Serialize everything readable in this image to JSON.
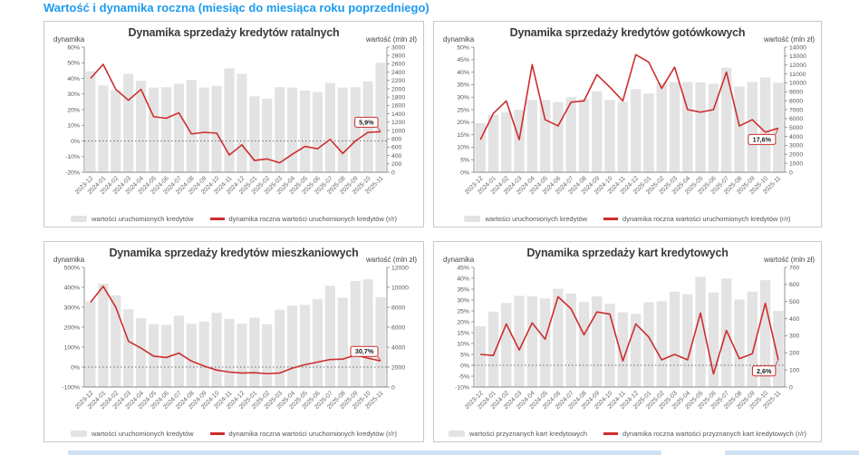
{
  "page": {
    "title": "Wartość i dynamika roczna (miesiąc do miesiąca roku poprzedniego)"
  },
  "colors": {
    "title_blue": "#1d9bf1",
    "bar_gray": "#e3e3e3",
    "line_red": "#cd2d2e",
    "text_dark": "#3b3b3b",
    "tick_gray": "#555555",
    "panel_border": "#c9c9c9"
  },
  "chart_data": [
    {
      "type": "bar",
      "title": "Dynamika sprzedaży kredytów ratalnych",
      "left_axis_title": "dynamika",
      "right_axis_title": "wartość (mln zł)",
      "left_axis": {
        "min": -20,
        "max": 60,
        "step": 10,
        "unit": "%"
      },
      "right_axis": {
        "min": 0,
        "max": 3000,
        "step": 200,
        "unit": "mln zł"
      },
      "categories": [
        "2023-12",
        "2024-01",
        "2024-02",
        "2024-03",
        "2024-04",
        "2024-05",
        "2024-06",
        "2024-07",
        "2024-08",
        "2024-09",
        "2024-10",
        "2024-11",
        "2024-12",
        "2025-01",
        "2025-02",
        "2025-03",
        "2025-04",
        "2025-05",
        "2025-06",
        "2025-07",
        "2025-08",
        "2025-09",
        "2025-10",
        "2025-11"
      ],
      "bars_mln_zl": [
        2420,
        2080,
        1970,
        2360,
        2190,
        2030,
        2040,
        2120,
        2210,
        2030,
        2070,
        2490,
        2360,
        1820,
        1760,
        2040,
        2030,
        1960,
        1920,
        2140,
        2030,
        2040,
        2180,
        2625
      ],
      "line_pct": [
        40,
        49,
        33,
        26,
        33,
        15.5,
        14.5,
        18,
        4.5,
        5.5,
        5,
        -9,
        -2.5,
        -12.5,
        -11.5,
        -14,
        -8.5,
        -3.5,
        -5,
        1,
        -8,
        0,
        5.5,
        5.9
      ],
      "end_label": "5,9%",
      "end_label_side": "above",
      "legend": [
        {
          "swatch": "bar",
          "label": "wartości uruchomionych kredytów"
        },
        {
          "swatch": "line",
          "label": "dynamika roczna wartości uruchomionych kredytów (r/r)"
        }
      ]
    },
    {
      "type": "bar",
      "title": "Dynamika sprzedaży kredytów gotówkowych",
      "left_axis_title": "dynamika",
      "right_axis_title": "wartość (mln zł)",
      "left_axis": {
        "min": 0,
        "max": 50,
        "step": 5,
        "unit": "%"
      },
      "right_axis": {
        "min": 0,
        "max": 14000,
        "step": 1000,
        "unit": "mln zł"
      },
      "categories": [
        "2023-12",
        "2024-01",
        "2024-02",
        "2024-03",
        "2024-04",
        "2024-05",
        "2024-06",
        "2024-07",
        "2024-08",
        "2024-09",
        "2024-10",
        "2024-11",
        "2024-12",
        "2025-01",
        "2025-02",
        "2025-03",
        "2025-04",
        "2025-05",
        "2025-06",
        "2025-07",
        "2025-08",
        "2025-09",
        "2025-10",
        "2025-11"
      ],
      "bars_mln_zl": [
        5500,
        6450,
        6700,
        7000,
        8100,
        8100,
        7850,
        8400,
        8200,
        9050,
        8100,
        7900,
        9300,
        8800,
        10050,
        10100,
        10100,
        10050,
        9900,
        11700,
        9600,
        10100,
        10600,
        10000
      ],
      "line_pct": [
        13,
        23.5,
        28.5,
        13,
        43,
        21,
        18.5,
        28,
        28.5,
        39,
        34,
        28.5,
        47,
        44,
        33.5,
        42,
        25,
        24,
        25,
        40,
        18.5,
        21,
        16,
        17.6
      ],
      "end_label": "17,6%",
      "end_label_side": "below",
      "legend": [
        {
          "swatch": "bar",
          "label": "wartości uruchomionych kredytów"
        },
        {
          "swatch": "line",
          "label": "dynamika roczna wartości uruchomionych kredytów (r/r)"
        }
      ]
    },
    {
      "type": "bar",
      "title": "Dynamika sprzedaży kredytów mieszkaniowych",
      "left_axis_title": "dynamika",
      "right_axis_title": "wartość (mln zł)",
      "left_axis": {
        "min": -100,
        "max": 500,
        "step": 100,
        "unit": "%"
      },
      "right_axis": {
        "min": 0,
        "max": 12000,
        "step": 2000,
        "unit": "mln zł"
      },
      "categories": [
        "2023-12",
        "2024-01",
        "2024-02",
        "2024-03",
        "2024-04",
        "2024-05",
        "2024-06",
        "2024-07",
        "2024-08",
        "2024-09",
        "2024-10",
        "2024-11",
        "2024-12",
        "2025-01",
        "2025-02",
        "2025-03",
        "2025-04",
        "2025-05",
        "2025-06",
        "2025-07",
        "2025-08",
        "2025-09",
        "2025-10",
        "2025-11"
      ],
      "bars_mln_zl": [
        8600,
        10360,
        9200,
        7800,
        6900,
        6300,
        6240,
        7160,
        6360,
        6560,
        7440,
        6840,
        6360,
        6960,
        6300,
        7760,
        8160,
        8240,
        8800,
        10160,
        8960,
        10640,
        10800,
        9000
      ],
      "line_pct": [
        325,
        405,
        300,
        130,
        95,
        55,
        48,
        70,
        30,
        5,
        -15,
        -25,
        -30,
        -28,
        -33,
        -30,
        -5,
        12,
        25,
        38,
        40,
        60,
        45,
        30.7
      ],
      "end_label": "30,7%",
      "end_label_side": "above",
      "legend": [
        {
          "swatch": "bar",
          "label": "wartości uruchomionych kredytów"
        },
        {
          "swatch": "line",
          "label": "dynamika roczna wartości uruchomionych kredytów (r/r)"
        }
      ]
    },
    {
      "type": "bar",
      "title": "Dynamika sprzedaży kart kredytowych",
      "left_axis_title": "dynamika",
      "right_axis_title": "wartość (mln zł)",
      "left_axis": {
        "min": -10,
        "max": 45,
        "step": 5,
        "unit": "%"
      },
      "right_axis": {
        "min": 0,
        "max": 700,
        "step": 100,
        "unit": "mln zł"
      },
      "categories": [
        "2023-12",
        "2024-01",
        "2024-02",
        "2024-03",
        "2024-04",
        "2024-05",
        "2024-06",
        "2024-07",
        "2024-08",
        "2024-09",
        "2024-10",
        "2024-11",
        "2024-12",
        "2025-01",
        "2025-02",
        "2025-03",
        "2025-04",
        "2025-05",
        "2025-06",
        "2025-07",
        "2025-08",
        "2025-09",
        "2025-10",
        "2025-11"
      ],
      "bars_mln_zl": [
        356,
        441,
        492,
        534,
        530,
        518,
        575,
        547,
        498,
        530,
        487,
        437,
        428,
        496,
        502,
        558,
        543,
        645,
        553,
        635,
        512,
        558,
        625,
        445
      ],
      "line_pct": [
        5,
        4.5,
        19,
        7,
        19.5,
        12,
        31.5,
        26,
        14,
        24.5,
        23.5,
        2,
        19,
        13,
        2.5,
        5,
        2.5,
        24,
        -4,
        16,
        3,
        5.3,
        28.5,
        2.6
      ],
      "end_label": "2,6%",
      "end_label_side": "below",
      "legend": [
        {
          "swatch": "bar",
          "label": "wartości przyznanych kart kredytowych"
        },
        {
          "swatch": "line",
          "label": "dynamika roczna wartości przyznanych kart kredytowych (r/r)"
        }
      ]
    }
  ]
}
